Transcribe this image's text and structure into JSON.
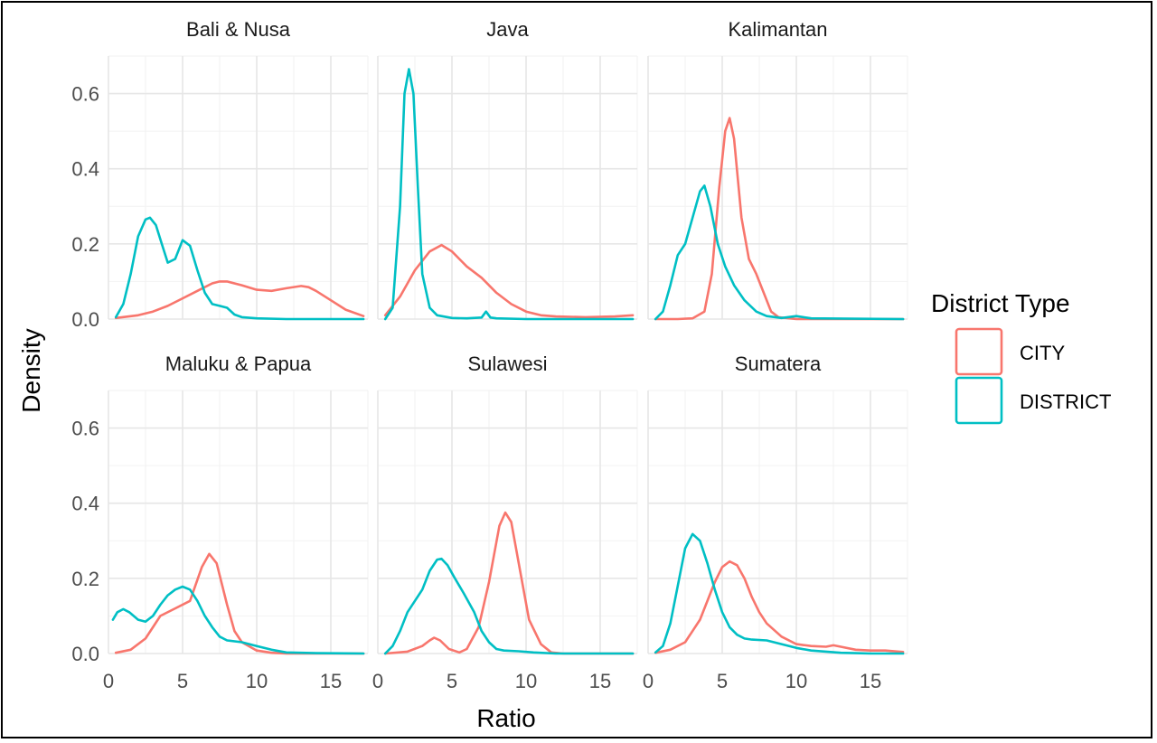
{
  "chart_data": {
    "type": "line",
    "xlabel": "Ratio",
    "ylabel": "Density",
    "xlim": [
      0,
      17.5
    ],
    "ylim": [
      0,
      0.7
    ],
    "x_ticks": [
      0,
      5,
      10,
      15
    ],
    "y_ticks": [
      0.0,
      0.2,
      0.4,
      0.6
    ],
    "y_tick_labels": [
      "0.0",
      "0.2",
      "0.4",
      "0.6"
    ],
    "grid": true,
    "legend": {
      "title": "District Type",
      "placement": "right",
      "entries": [
        {
          "name": "CITY",
          "color": "#F8766D"
        },
        {
          "name": "DISTRICT",
          "color": "#00BFC4"
        }
      ]
    },
    "panels": [
      {
        "name": "Bali & Nusa",
        "series": [
          {
            "name": "CITY",
            "x": [
              0.5,
              2,
              3,
              4,
              5,
              6,
              7,
              7.5,
              8,
              9,
              10,
              11,
              12,
              13,
              13.5,
              14,
              15,
              16,
              17.2
            ],
            "y": [
              0.003,
              0.01,
              0.02,
              0.035,
              0.055,
              0.075,
              0.095,
              0.1,
              0.1,
              0.09,
              0.078,
              0.075,
              0.082,
              0.088,
              0.085,
              0.075,
              0.05,
              0.025,
              0.008
            ]
          },
          {
            "name": "DISTRICT",
            "x": [
              0.5,
              1,
              1.5,
              2,
              2.5,
              2.8,
              3.2,
              3.6,
              4,
              4.5,
              5,
              5.5,
              6,
              6.5,
              7,
              7.5,
              8,
              8.5,
              9,
              10,
              12,
              17.2
            ],
            "y": [
              0.005,
              0.04,
              0.12,
              0.22,
              0.265,
              0.27,
              0.25,
              0.2,
              0.15,
              0.16,
              0.21,
              0.195,
              0.13,
              0.07,
              0.04,
              0.035,
              0.03,
              0.012,
              0.005,
              0.002,
              0.0,
              0.0
            ]
          }
        ]
      },
      {
        "name": "Java",
        "series": [
          {
            "name": "CITY",
            "x": [
              0.5,
              1.5,
              2.5,
              3.5,
              4.3,
              5,
              6,
              7,
              8,
              9,
              10,
              11,
              12,
              14,
              16,
              17.2
            ],
            "y": [
              0.01,
              0.06,
              0.13,
              0.18,
              0.197,
              0.18,
              0.14,
              0.11,
              0.07,
              0.04,
              0.02,
              0.01,
              0.007,
              0.005,
              0.007,
              0.01
            ]
          },
          {
            "name": "DISTRICT",
            "x": [
              0.5,
              1,
              1.5,
              1.8,
              2.1,
              2.4,
              2.7,
              3,
              3.5,
              4,
              5,
              6,
              7,
              7.3,
              7.6,
              8,
              10,
              17.2
            ],
            "y": [
              0.0,
              0.03,
              0.3,
              0.6,
              0.665,
              0.6,
              0.35,
              0.12,
              0.03,
              0.01,
              0.003,
              0.002,
              0.004,
              0.02,
              0.004,
              0.002,
              0.0,
              0.0
            ]
          }
        ]
      },
      {
        "name": "Kalimantan",
        "series": [
          {
            "name": "CITY",
            "x": [
              0.5,
              2,
              3,
              3.8,
              4.3,
              4.8,
              5.2,
              5.5,
              5.8,
              6.3,
              6.8,
              7.3,
              7.8,
              8.3,
              8.8,
              10,
              17.2
            ],
            "y": [
              0.0,
              0.0,
              0.002,
              0.02,
              0.12,
              0.35,
              0.5,
              0.535,
              0.48,
              0.27,
              0.16,
              0.12,
              0.07,
              0.02,
              0.005,
              0.0,
              0.0
            ]
          },
          {
            "name": "DISTRICT",
            "x": [
              0.5,
              1,
              1.5,
              2,
              2.5,
              3,
              3.5,
              3.8,
              4.2,
              4.7,
              5.2,
              5.8,
              6.5,
              7.3,
              8,
              9,
              10,
              11,
              17.2
            ],
            "y": [
              0.0,
              0.02,
              0.09,
              0.17,
              0.2,
              0.27,
              0.34,
              0.355,
              0.3,
              0.2,
              0.14,
              0.09,
              0.05,
              0.02,
              0.008,
              0.003,
              0.008,
              0.002,
              0.0
            ]
          }
        ]
      },
      {
        "name": "Maluku & Papua",
        "series": [
          {
            "name": "CITY",
            "x": [
              0.5,
              1.5,
              2.5,
              3.5,
              4.5,
              5.5,
              6.3,
              6.8,
              7.3,
              8,
              8.5,
              9,
              10,
              11,
              12,
              17.2
            ],
            "y": [
              0.002,
              0.01,
              0.04,
              0.1,
              0.12,
              0.14,
              0.23,
              0.265,
              0.24,
              0.13,
              0.06,
              0.03,
              0.008,
              0.002,
              0.0,
              0.0
            ]
          },
          {
            "name": "DISTRICT",
            "x": [
              0.3,
              0.6,
              1,
              1.4,
              2,
              2.5,
              3,
              3.5,
              4,
              4.5,
              5,
              5.5,
              6,
              6.5,
              7,
              7.5,
              8,
              9,
              10,
              11,
              12,
              14,
              17.2
            ],
            "y": [
              0.09,
              0.11,
              0.118,
              0.11,
              0.09,
              0.085,
              0.1,
              0.13,
              0.155,
              0.17,
              0.178,
              0.17,
              0.14,
              0.1,
              0.07,
              0.045,
              0.035,
              0.03,
              0.02,
              0.01,
              0.003,
              0.001,
              0.0
            ]
          }
        ]
      },
      {
        "name": "Sulawesi",
        "series": [
          {
            "name": "CITY",
            "x": [
              0.5,
              2,
              3,
              3.5,
              3.8,
              4.2,
              4.8,
              5.5,
              6,
              6.8,
              7.5,
              8.2,
              8.6,
              9,
              9.6,
              10.2,
              11,
              11.7,
              12.5,
              17.2
            ],
            "y": [
              0.0,
              0.005,
              0.02,
              0.035,
              0.042,
              0.035,
              0.012,
              0.003,
              0.012,
              0.07,
              0.19,
              0.34,
              0.375,
              0.35,
              0.22,
              0.09,
              0.025,
              0.003,
              0.0,
              0.0
            ]
          },
          {
            "name": "DISTRICT",
            "x": [
              0.5,
              1,
              1.5,
              2,
              2.5,
              3,
              3.5,
              4,
              4.3,
              4.7,
              5.2,
              5.8,
              6.5,
              7,
              7.5,
              8,
              8.5,
              9.5,
              10.5,
              12,
              17.2
            ],
            "y": [
              0.0,
              0.02,
              0.06,
              0.11,
              0.14,
              0.17,
              0.22,
              0.25,
              0.252,
              0.235,
              0.2,
              0.16,
              0.11,
              0.06,
              0.03,
              0.012,
              0.008,
              0.006,
              0.003,
              0.0,
              0.0
            ]
          }
        ]
      },
      {
        "name": "Sumatera",
        "series": [
          {
            "name": "CITY",
            "x": [
              0.5,
              1.5,
              2.5,
              3.5,
              4.5,
              5,
              5.5,
              6,
              6.5,
              7,
              7.5,
              8,
              9,
              10,
              11,
              12,
              12.5,
              13,
              14,
              15,
              16,
              17.2
            ],
            "y": [
              0.002,
              0.01,
              0.03,
              0.09,
              0.19,
              0.23,
              0.245,
              0.235,
              0.2,
              0.15,
              0.11,
              0.08,
              0.045,
              0.025,
              0.02,
              0.018,
              0.022,
              0.018,
              0.01,
              0.008,
              0.008,
              0.004
            ]
          },
          {
            "name": "DISTRICT",
            "x": [
              0.5,
              1,
              1.5,
              2,
              2.5,
              3,
              3.5,
              4,
              4.5,
              5,
              5.5,
              6,
              6.5,
              7,
              8,
              9,
              10,
              11,
              12,
              13,
              14,
              15,
              17.2
            ],
            "y": [
              0.003,
              0.02,
              0.08,
              0.18,
              0.28,
              0.318,
              0.3,
              0.24,
              0.17,
              0.11,
              0.07,
              0.05,
              0.04,
              0.037,
              0.035,
              0.025,
              0.015,
              0.008,
              0.005,
              0.002,
              0.001,
              0.0,
              0.0
            ]
          }
        ]
      }
    ]
  }
}
